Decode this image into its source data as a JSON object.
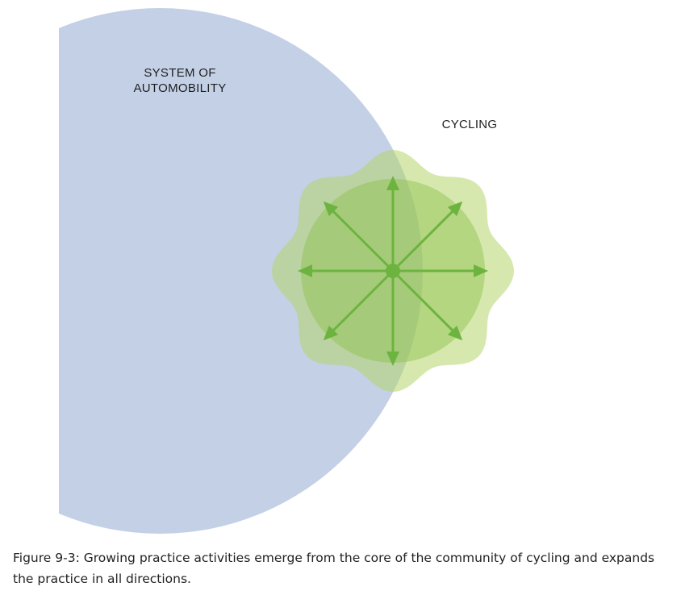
{
  "diagram": {
    "automobility_label_line1": "SYSTEM OF",
    "automobility_label_line2": "AUTOMOBILITY",
    "cycling_label": "CYCLING",
    "arrow_directions": 8,
    "colors": {
      "automobility": "#c3d0e6",
      "cycling_outer": "#b5d56a",
      "cycling_inner": "#8cc24a",
      "arrows": "#6db33f"
    }
  },
  "caption": {
    "text": "Figure 9-3: Growing practice activities emerge from the core of the community of cycling and expands the practice in all directions."
  }
}
